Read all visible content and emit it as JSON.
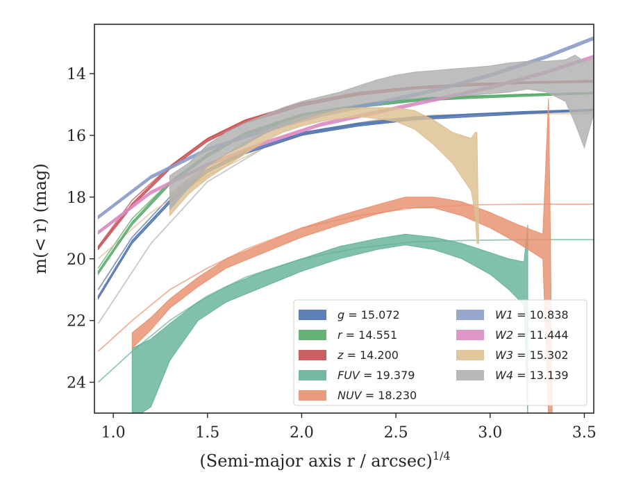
{
  "chart_data": {
    "type": "area",
    "title": "",
    "xlabel": "(Semi-major axis r / arcsec)",
    "xlabel_superscript": "1/4",
    "ylabel": "m(< r) (mag)",
    "xlim": [
      0.9,
      3.55
    ],
    "ylim": [
      25,
      12.4
    ],
    "y_inverted": true,
    "grid": false,
    "legend_position": "lower-right",
    "x_ticks": [
      1.0,
      1.5,
      2.0,
      2.5,
      3.0,
      3.5
    ],
    "x_tick_labels": [
      "1.0",
      "1.5",
      "2.0",
      "2.5",
      "3.0",
      "3.5"
    ],
    "y_ticks": [
      14,
      16,
      18,
      20,
      22,
      24
    ],
    "y_tick_labels": [
      "14",
      "16",
      "18",
      "20",
      "22",
      "24"
    ],
    "series": [
      {
        "name": "g = 15.072",
        "legend_var": "g",
        "legend_val": "15.072",
        "color": "#4c72b0",
        "band_x": [
          0.92,
          1.1,
          1.3,
          1.5,
          1.7,
          2.0,
          2.3,
          2.6,
          2.9,
          3.2,
          3.55
        ],
        "band_upper": [
          21.2,
          19.4,
          18.1,
          17.1,
          16.5,
          15.9,
          15.6,
          15.4,
          15.3,
          15.22,
          15.15
        ],
        "band_lower": [
          21.3,
          19.5,
          18.2,
          17.2,
          16.6,
          16.0,
          15.7,
          15.5,
          15.4,
          15.3,
          15.2
        ],
        "fit_x": [
          0.92,
          1.1,
          1.3,
          1.5,
          1.7,
          2.0,
          2.3,
          2.6,
          2.9,
          3.2,
          3.55
        ],
        "fit_y": [
          21.0,
          19.3,
          18.0,
          17.1,
          16.5,
          15.95,
          15.65,
          15.45,
          15.32,
          15.25,
          15.2
        ]
      },
      {
        "name": "r = 14.551",
        "legend_var": "r",
        "legend_val": "14.551",
        "color": "#55a868",
        "band_x": [
          0.92,
          1.1,
          1.3,
          1.5,
          1.7,
          2.0,
          2.3,
          2.6,
          2.9,
          3.2,
          3.55
        ],
        "band_upper": [
          20.4,
          18.8,
          17.5,
          16.6,
          15.9,
          15.3,
          15.0,
          14.8,
          14.72,
          14.66,
          14.6
        ],
        "band_lower": [
          20.5,
          18.9,
          17.6,
          16.7,
          16.0,
          15.4,
          15.1,
          14.9,
          14.8,
          14.73,
          14.66
        ],
        "fit_x": [
          0.92,
          1.1,
          1.3,
          1.5,
          1.7,
          2.0,
          2.3,
          2.6,
          2.9,
          3.2,
          3.55
        ],
        "fit_y": [
          20.3,
          18.7,
          17.5,
          16.6,
          15.95,
          15.35,
          15.05,
          14.85,
          14.75,
          14.68,
          14.62
        ]
      },
      {
        "name": "z = 14.200",
        "legend_var": "z",
        "legend_val": "14.200",
        "color": "#c44e52",
        "band_x": [
          0.92,
          1.1,
          1.3,
          1.5,
          1.7,
          2.0,
          2.3,
          2.6,
          2.9,
          3.2,
          3.55
        ],
        "band_upper": [
          19.6,
          18.2,
          17.0,
          16.1,
          15.5,
          14.95,
          14.6,
          14.42,
          14.32,
          14.26,
          14.22
        ],
        "band_lower": [
          19.7,
          18.3,
          17.1,
          16.2,
          15.6,
          15.05,
          14.7,
          14.5,
          14.4,
          14.32,
          14.28
        ],
        "fit_x": [
          0.92,
          1.1,
          1.3,
          1.5,
          1.7,
          2.0,
          2.3,
          2.6,
          2.9,
          3.2,
          3.55
        ],
        "fit_y": [
          19.6,
          18.1,
          17.0,
          16.1,
          15.5,
          14.95,
          14.65,
          14.45,
          14.35,
          14.28,
          14.22
        ]
      },
      {
        "name": "FUV = 19.379",
        "legend_var": "FUV",
        "legend_val": "19.379",
        "color": "#64b29a",
        "band_x": [
          1.1,
          1.2,
          1.3,
          1.45,
          1.6,
          1.8,
          2.0,
          2.2,
          2.4,
          2.55,
          2.7,
          2.85,
          3.0,
          3.1,
          3.18,
          3.2
        ],
        "band_upper": [
          22.9,
          22.6,
          22.1,
          21.4,
          20.9,
          20.4,
          20.0,
          19.6,
          19.35,
          19.2,
          19.3,
          19.5,
          19.8,
          20.0,
          20.1,
          18.9
        ],
        "band_lower": [
          25.2,
          24.8,
          23.3,
          22.0,
          21.4,
          20.9,
          20.4,
          20.0,
          19.7,
          19.55,
          19.7,
          20.0,
          20.5,
          21.0,
          21.5,
          25.2
        ],
        "fit_x": [
          0.92,
          1.1,
          1.3,
          1.5,
          1.7,
          2.0,
          2.3,
          2.6,
          2.9,
          3.2,
          3.55
        ],
        "fit_y": [
          24.0,
          23.0,
          22.0,
          21.2,
          20.6,
          20.0,
          19.65,
          19.45,
          19.4,
          19.38,
          19.38
        ]
      },
      {
        "name": "NUV = 18.230",
        "legend_var": "NUV",
        "legend_val": "18.230",
        "color": "#e8906f",
        "band_x": [
          1.1,
          1.2,
          1.3,
          1.45,
          1.6,
          1.8,
          2.0,
          2.2,
          2.4,
          2.55,
          2.7,
          2.85,
          3.0,
          3.15,
          3.28,
          3.31,
          3.32,
          3.33
        ],
        "band_upper": [
          22.4,
          21.9,
          21.3,
          20.6,
          20.0,
          19.5,
          19.0,
          18.6,
          18.25,
          18.0,
          18.0,
          18.15,
          18.5,
          18.9,
          19.2,
          14.8,
          19.3,
          25.2
        ],
        "band_lower": [
          22.9,
          22.3,
          21.6,
          20.9,
          20.3,
          19.8,
          19.3,
          18.9,
          18.55,
          18.35,
          18.35,
          18.6,
          19.0,
          19.5,
          20.0,
          25.2,
          25.2,
          25.2
        ],
        "fit_x": [
          0.92,
          1.1,
          1.3,
          1.5,
          1.7,
          2.0,
          2.3,
          2.6,
          2.9,
          3.2,
          3.55
        ],
        "fit_y": [
          23.0,
          22.0,
          21.0,
          20.3,
          19.7,
          19.0,
          18.6,
          18.35,
          18.25,
          18.23,
          18.23
        ]
      },
      {
        "name": "W1 = 10.838",
        "legend_var": "W1",
        "legend_val": "10.838",
        "color": "#8c9dc8",
        "band_x": [
          0.92,
          1.2,
          1.5,
          1.8,
          2.1,
          2.4,
          2.7,
          3.0,
          3.3,
          3.55
        ],
        "band_upper": [
          18.6,
          17.3,
          16.4,
          15.8,
          15.3,
          14.9,
          14.5,
          14.0,
          13.4,
          12.8
        ],
        "band_lower": [
          18.7,
          17.4,
          16.5,
          15.9,
          15.4,
          15.0,
          14.6,
          14.1,
          13.5,
          12.9
        ],
        "fit_x": [
          0.92,
          1.2,
          1.5,
          1.8,
          2.1,
          2.4,
          2.7,
          3.0,
          3.3,
          3.55
        ],
        "fit_y": [
          18.65,
          17.35,
          16.45,
          15.85,
          15.35,
          14.95,
          14.55,
          14.05,
          13.45,
          12.85
        ]
      },
      {
        "name": "W2 = 11.444",
        "legend_var": "W2",
        "legend_val": "11.444",
        "color": "#da8bc3",
        "band_x": [
          0.92,
          1.2,
          1.5,
          1.8,
          2.1,
          2.4,
          2.7,
          3.0,
          3.3,
          3.55
        ],
        "band_upper": [
          19.1,
          17.8,
          16.9,
          16.2,
          15.6,
          15.2,
          14.8,
          14.4,
          13.9,
          13.4
        ],
        "band_lower": [
          19.2,
          17.9,
          17.0,
          16.3,
          15.7,
          15.3,
          14.9,
          14.5,
          14.0,
          13.5
        ],
        "fit_x": [
          0.92,
          1.2,
          1.5,
          1.8,
          2.1,
          2.4,
          2.7,
          3.0,
          3.3,
          3.55
        ],
        "fit_y": [
          19.15,
          17.85,
          16.95,
          16.25,
          15.65,
          15.25,
          14.85,
          14.45,
          13.95,
          13.45
        ]
      },
      {
        "name": "W3 = 15.302",
        "legend_var": "W3",
        "legend_val": "15.302",
        "color": "#dcc091",
        "band_x": [
          1.3,
          1.4,
          1.5,
          1.6,
          1.7,
          1.8,
          1.9,
          2.0,
          2.1,
          2.2,
          2.3,
          2.4,
          2.5,
          2.6,
          2.7,
          2.8,
          2.9,
          2.92,
          2.93,
          2.94
        ],
        "band_upper": [
          17.9,
          17.4,
          17.0,
          16.6,
          16.2,
          15.9,
          15.6,
          15.4,
          15.25,
          15.15,
          15.1,
          15.1,
          15.1,
          15.2,
          15.5,
          15.9,
          16.1,
          15.9,
          15.9,
          19.5
        ],
        "band_lower": [
          18.6,
          17.9,
          17.4,
          17.0,
          16.6,
          16.2,
          15.9,
          15.7,
          15.55,
          15.45,
          15.4,
          15.45,
          15.55,
          15.8,
          16.3,
          16.9,
          17.8,
          18.5,
          19.5,
          19.5
        ],
        "fit_x": [
          0.92,
          1.2,
          1.5,
          1.8,
          2.1,
          2.4,
          2.7,
          3.0,
          3.3,
          3.55
        ],
        "fit_y": [
          20.0,
          18.5,
          17.3,
          16.4,
          15.8,
          15.5,
          15.35,
          15.31,
          15.3,
          15.3
        ]
      },
      {
        "name": "W4 = 13.139",
        "legend_var": "W4",
        "legend_val": "13.139",
        "color": "#b0b0b0",
        "band_x": [
          1.3,
          1.4,
          1.5,
          1.6,
          1.7,
          1.8,
          1.9,
          2.0,
          2.1,
          2.2,
          2.3,
          2.4,
          2.5,
          2.6,
          2.7,
          2.8,
          2.9,
          3.0,
          3.1,
          3.2,
          3.3,
          3.4,
          3.45,
          3.5,
          3.55
        ],
        "band_upper": [
          17.3,
          16.9,
          16.3,
          15.9,
          15.6,
          15.35,
          15.1,
          14.9,
          14.75,
          14.6,
          14.4,
          14.2,
          14.05,
          13.95,
          13.9,
          13.85,
          13.8,
          13.75,
          13.65,
          13.6,
          13.6,
          13.55,
          13.4,
          13.6,
          13.5
        ],
        "band_lower": [
          18.4,
          17.7,
          17.0,
          16.6,
          16.3,
          15.95,
          15.7,
          15.5,
          15.3,
          15.15,
          15.0,
          14.9,
          14.85,
          14.8,
          14.75,
          14.75,
          14.7,
          14.65,
          14.6,
          14.5,
          14.6,
          14.9,
          15.6,
          16.4,
          15.3
        ],
        "fit_x": [
          0.92,
          1.2,
          1.5,
          1.8,
          2.1,
          2.4,
          2.7,
          3.0,
          3.3,
          3.55
        ],
        "fit_y": [
          22.1,
          19.5,
          17.5,
          16.4,
          15.8,
          15.5,
          15.35,
          15.3,
          15.25,
          15.25
        ]
      }
    ]
  }
}
